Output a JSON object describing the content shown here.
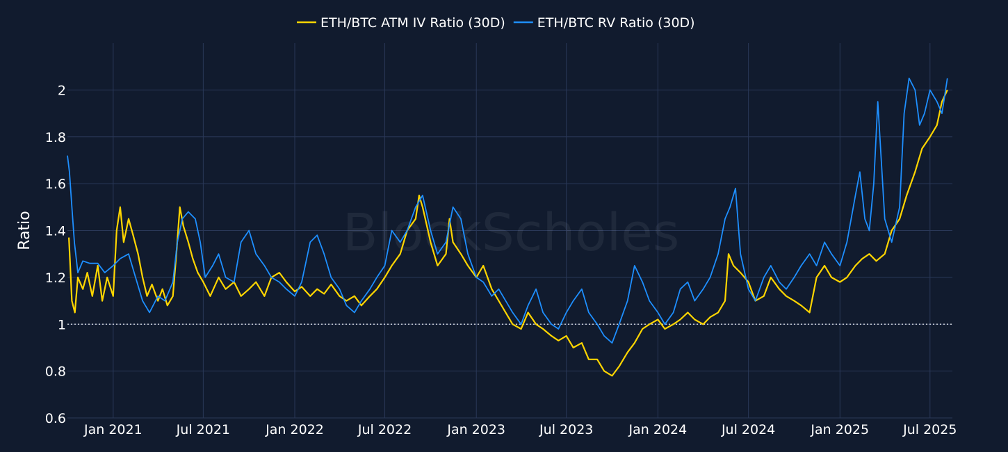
{
  "watermark": "BlockScholes",
  "colors": {
    "background": "#111b2e",
    "grid": "#2a3858",
    "iv": "#ffd500",
    "rv": "#1e8fff",
    "reference": "#c8ccd4"
  },
  "chart_data": {
    "type": "line",
    "xlabel": "",
    "ylabel": "Ratio",
    "ylim": [
      0.6,
      2.2
    ],
    "yticks": [
      0.6,
      0.8,
      1,
      1.2,
      1.4,
      1.6,
      1.8,
      2
    ],
    "ytick_labels": [
      "0.6",
      "0.8",
      "1",
      "1.2",
      "1.4",
      "1.6",
      "1.8",
      "2"
    ],
    "xlim": [
      "2020-10-01",
      "2025-08-15"
    ],
    "xticks": [
      "2021-01-01",
      "2021-07-01",
      "2022-01-01",
      "2022-07-01",
      "2023-01-01",
      "2023-07-01",
      "2024-01-01",
      "2024-07-01",
      "2025-01-01",
      "2025-07-01"
    ],
    "xtick_labels": [
      "Jan 2021",
      "Jul 2021",
      "Jan 2022",
      "Jul 2022",
      "Jan 2023",
      "Jul 2023",
      "Jan 2024",
      "Jul 2024",
      "Jan 2025",
      "Jul 2025"
    ],
    "grid": true,
    "legend_position": "top-center",
    "reference_line": {
      "y": 1,
      "style": "dotted"
    },
    "series": [
      {
        "name": "ETH/BTC ATM IV Ratio (30D)",
        "color": "#ffd500",
        "points": [
          [
            "2020-10-04",
            1.37
          ],
          [
            "2020-10-10",
            1.1
          ],
          [
            "2020-10-16",
            1.05
          ],
          [
            "2020-10-22",
            1.2
          ],
          [
            "2020-11-01",
            1.15
          ],
          [
            "2020-11-10",
            1.22
          ],
          [
            "2020-11-20",
            1.12
          ],
          [
            "2020-12-01",
            1.25
          ],
          [
            "2020-12-10",
            1.1
          ],
          [
            "2020-12-20",
            1.2
          ],
          [
            "2021-01-01",
            1.12
          ],
          [
            "2021-01-08",
            1.4
          ],
          [
            "2021-01-15",
            1.5
          ],
          [
            "2021-01-22",
            1.35
          ],
          [
            "2021-02-01",
            1.45
          ],
          [
            "2021-02-10",
            1.38
          ],
          [
            "2021-02-20",
            1.3
          ],
          [
            "2021-03-01",
            1.2
          ],
          [
            "2021-03-10",
            1.12
          ],
          [
            "2021-03-20",
            1.17
          ],
          [
            "2021-04-01",
            1.1
          ],
          [
            "2021-04-10",
            1.15
          ],
          [
            "2021-04-20",
            1.08
          ],
          [
            "2021-05-01",
            1.12
          ],
          [
            "2021-05-08",
            1.3
          ],
          [
            "2021-05-15",
            1.5
          ],
          [
            "2021-05-22",
            1.42
          ],
          [
            "2021-06-01",
            1.35
          ],
          [
            "2021-06-10",
            1.28
          ],
          [
            "2021-06-20",
            1.22
          ],
          [
            "2021-07-01",
            1.18
          ],
          [
            "2021-07-15",
            1.12
          ],
          [
            "2021-08-01",
            1.2
          ],
          [
            "2021-08-15",
            1.15
          ],
          [
            "2021-09-01",
            1.18
          ],
          [
            "2021-09-15",
            1.12
          ],
          [
            "2021-10-01",
            1.15
          ],
          [
            "2021-10-15",
            1.18
          ],
          [
            "2021-11-01",
            1.12
          ],
          [
            "2021-11-15",
            1.2
          ],
          [
            "2021-12-01",
            1.22
          ],
          [
            "2021-12-15",
            1.18
          ],
          [
            "2022-01-01",
            1.14
          ],
          [
            "2022-01-15",
            1.16
          ],
          [
            "2022-02-01",
            1.12
          ],
          [
            "2022-02-15",
            1.15
          ],
          [
            "2022-03-01",
            1.13
          ],
          [
            "2022-03-15",
            1.17
          ],
          [
            "2022-04-01",
            1.12
          ],
          [
            "2022-04-15",
            1.1
          ],
          [
            "2022-05-01",
            1.12
          ],
          [
            "2022-05-15",
            1.08
          ],
          [
            "2022-06-01",
            1.12
          ],
          [
            "2022-06-15",
            1.15
          ],
          [
            "2022-07-01",
            1.2
          ],
          [
            "2022-07-15",
            1.25
          ],
          [
            "2022-08-01",
            1.3
          ],
          [
            "2022-08-15",
            1.4
          ],
          [
            "2022-09-01",
            1.45
          ],
          [
            "2022-09-08",
            1.55
          ],
          [
            "2022-09-15",
            1.5
          ],
          [
            "2022-10-01",
            1.35
          ],
          [
            "2022-10-15",
            1.25
          ],
          [
            "2022-11-01",
            1.3
          ],
          [
            "2022-11-08",
            1.45
          ],
          [
            "2022-11-15",
            1.35
          ],
          [
            "2022-12-01",
            1.3
          ],
          [
            "2022-12-15",
            1.25
          ],
          [
            "2023-01-01",
            1.2
          ],
          [
            "2023-01-15",
            1.25
          ],
          [
            "2023-02-01",
            1.15
          ],
          [
            "2023-02-15",
            1.1
          ],
          [
            "2023-03-01",
            1.05
          ],
          [
            "2023-03-15",
            1.0
          ],
          [
            "2023-04-01",
            0.98
          ],
          [
            "2023-04-15",
            1.05
          ],
          [
            "2023-05-01",
            1.0
          ],
          [
            "2023-05-15",
            0.98
          ],
          [
            "2023-06-01",
            0.95
          ],
          [
            "2023-06-15",
            0.93
          ],
          [
            "2023-07-01",
            0.95
          ],
          [
            "2023-07-15",
            0.9
          ],
          [
            "2023-08-01",
            0.92
          ],
          [
            "2023-08-15",
            0.85
          ],
          [
            "2023-09-01",
            0.85
          ],
          [
            "2023-09-15",
            0.8
          ],
          [
            "2023-10-01",
            0.78
          ],
          [
            "2023-10-15",
            0.82
          ],
          [
            "2023-11-01",
            0.88
          ],
          [
            "2023-11-15",
            0.92
          ],
          [
            "2023-12-01",
            0.98
          ],
          [
            "2023-12-15",
            1.0
          ],
          [
            "2024-01-01",
            1.02
          ],
          [
            "2024-01-15",
            0.98
          ],
          [
            "2024-02-01",
            1.0
          ],
          [
            "2024-02-15",
            1.02
          ],
          [
            "2024-03-01",
            1.05
          ],
          [
            "2024-03-15",
            1.02
          ],
          [
            "2024-04-01",
            1.0
          ],
          [
            "2024-04-15",
            1.03
          ],
          [
            "2024-05-01",
            1.05
          ],
          [
            "2024-05-15",
            1.1
          ],
          [
            "2024-05-22",
            1.3
          ],
          [
            "2024-06-01",
            1.25
          ],
          [
            "2024-06-15",
            1.22
          ],
          [
            "2024-07-01",
            1.18
          ],
          [
            "2024-07-15",
            1.1
          ],
          [
            "2024-08-01",
            1.12
          ],
          [
            "2024-08-15",
            1.2
          ],
          [
            "2024-09-01",
            1.15
          ],
          [
            "2024-09-15",
            1.12
          ],
          [
            "2024-10-01",
            1.1
          ],
          [
            "2024-10-15",
            1.08
          ],
          [
            "2024-11-01",
            1.05
          ],
          [
            "2024-11-15",
            1.2
          ],
          [
            "2024-12-01",
            1.25
          ],
          [
            "2024-12-15",
            1.2
          ],
          [
            "2025-01-01",
            1.18
          ],
          [
            "2025-01-15",
            1.2
          ],
          [
            "2025-02-01",
            1.25
          ],
          [
            "2025-02-15",
            1.28
          ],
          [
            "2025-03-01",
            1.3
          ],
          [
            "2025-03-15",
            1.27
          ],
          [
            "2025-04-01",
            1.3
          ],
          [
            "2025-04-15",
            1.4
          ],
          [
            "2025-05-01",
            1.45
          ],
          [
            "2025-05-15",
            1.55
          ],
          [
            "2025-06-01",
            1.65
          ],
          [
            "2025-06-15",
            1.75
          ],
          [
            "2025-07-01",
            1.8
          ],
          [
            "2025-07-15",
            1.85
          ],
          [
            "2025-07-25",
            1.95
          ],
          [
            "2025-08-05",
            2.0
          ]
        ]
      },
      {
        "name": "ETH/BTC RV Ratio (30D)",
        "color": "#1e8fff",
        "points": [
          [
            "2020-10-01",
            1.72
          ],
          [
            "2020-10-05",
            1.65
          ],
          [
            "2020-10-10",
            1.5
          ],
          [
            "2020-10-15",
            1.35
          ],
          [
            "2020-10-22",
            1.22
          ],
          [
            "2020-11-01",
            1.27
          ],
          [
            "2020-11-15",
            1.26
          ],
          [
            "2020-12-01",
            1.26
          ],
          [
            "2020-12-15",
            1.22
          ],
          [
            "2021-01-01",
            1.25
          ],
          [
            "2021-01-15",
            1.28
          ],
          [
            "2021-02-01",
            1.3
          ],
          [
            "2021-02-15",
            1.2
          ],
          [
            "2021-03-01",
            1.1
          ],
          [
            "2021-03-15",
            1.05
          ],
          [
            "2021-04-01",
            1.12
          ],
          [
            "2021-04-15",
            1.1
          ],
          [
            "2021-05-01",
            1.18
          ],
          [
            "2021-05-10",
            1.35
          ],
          [
            "2021-05-20",
            1.45
          ],
          [
            "2021-06-01",
            1.48
          ],
          [
            "2021-06-15",
            1.45
          ],
          [
            "2021-06-25",
            1.35
          ],
          [
            "2021-07-05",
            1.2
          ],
          [
            "2021-07-20",
            1.25
          ],
          [
            "2021-08-01",
            1.3
          ],
          [
            "2021-08-15",
            1.2
          ],
          [
            "2021-09-01",
            1.18
          ],
          [
            "2021-09-15",
            1.35
          ],
          [
            "2021-10-01",
            1.4
          ],
          [
            "2021-10-15",
            1.3
          ],
          [
            "2021-11-01",
            1.25
          ],
          [
            "2021-11-15",
            1.2
          ],
          [
            "2021-12-01",
            1.18
          ],
          [
            "2021-12-15",
            1.15
          ],
          [
            "2022-01-01",
            1.12
          ],
          [
            "2022-01-15",
            1.18
          ],
          [
            "2022-02-01",
            1.35
          ],
          [
            "2022-02-15",
            1.38
          ],
          [
            "2022-03-01",
            1.3
          ],
          [
            "2022-03-15",
            1.2
          ],
          [
            "2022-04-01",
            1.15
          ],
          [
            "2022-04-15",
            1.08
          ],
          [
            "2022-05-01",
            1.05
          ],
          [
            "2022-05-15",
            1.1
          ],
          [
            "2022-06-01",
            1.15
          ],
          [
            "2022-06-15",
            1.2
          ],
          [
            "2022-07-01",
            1.25
          ],
          [
            "2022-07-15",
            1.4
          ],
          [
            "2022-08-01",
            1.35
          ],
          [
            "2022-08-15",
            1.4
          ],
          [
            "2022-09-01",
            1.5
          ],
          [
            "2022-09-15",
            1.55
          ],
          [
            "2022-10-01",
            1.4
          ],
          [
            "2022-10-15",
            1.3
          ],
          [
            "2022-11-01",
            1.35
          ],
          [
            "2022-11-15",
            1.5
          ],
          [
            "2022-12-01",
            1.45
          ],
          [
            "2022-12-15",
            1.3
          ],
          [
            "2023-01-01",
            1.2
          ],
          [
            "2023-01-15",
            1.18
          ],
          [
            "2023-02-01",
            1.12
          ],
          [
            "2023-02-15",
            1.15
          ],
          [
            "2023-03-01",
            1.1
          ],
          [
            "2023-03-15",
            1.05
          ],
          [
            "2023-04-01",
            1.0
          ],
          [
            "2023-04-15",
            1.08
          ],
          [
            "2023-05-01",
            1.15
          ],
          [
            "2023-05-15",
            1.05
          ],
          [
            "2023-06-01",
            1.0
          ],
          [
            "2023-06-15",
            0.98
          ],
          [
            "2023-07-01",
            1.05
          ],
          [
            "2023-07-15",
            1.1
          ],
          [
            "2023-08-01",
            1.15
          ],
          [
            "2023-08-15",
            1.05
          ],
          [
            "2023-09-01",
            1.0
          ],
          [
            "2023-09-15",
            0.95
          ],
          [
            "2023-10-01",
            0.92
          ],
          [
            "2023-10-15",
            1.0
          ],
          [
            "2023-11-01",
            1.1
          ],
          [
            "2023-11-15",
            1.25
          ],
          [
            "2023-12-01",
            1.18
          ],
          [
            "2023-12-15",
            1.1
          ],
          [
            "2024-01-01",
            1.05
          ],
          [
            "2024-01-15",
            1.0
          ],
          [
            "2024-02-01",
            1.05
          ],
          [
            "2024-02-15",
            1.15
          ],
          [
            "2024-03-01",
            1.18
          ],
          [
            "2024-03-15",
            1.1
          ],
          [
            "2024-04-01",
            1.15
          ],
          [
            "2024-04-15",
            1.2
          ],
          [
            "2024-05-01",
            1.3
          ],
          [
            "2024-05-15",
            1.45
          ],
          [
            "2024-05-25",
            1.5
          ],
          [
            "2024-06-05",
            1.58
          ],
          [
            "2024-06-15",
            1.3
          ],
          [
            "2024-07-01",
            1.15
          ],
          [
            "2024-07-15",
            1.1
          ],
          [
            "2024-08-01",
            1.2
          ],
          [
            "2024-08-15",
            1.25
          ],
          [
            "2024-09-01",
            1.18
          ],
          [
            "2024-09-15",
            1.15
          ],
          [
            "2024-10-01",
            1.2
          ],
          [
            "2024-10-15",
            1.25
          ],
          [
            "2024-11-01",
            1.3
          ],
          [
            "2024-11-15",
            1.25
          ],
          [
            "2024-12-01",
            1.35
          ],
          [
            "2024-12-15",
            1.3
          ],
          [
            "2025-01-01",
            1.25
          ],
          [
            "2025-01-15",
            1.35
          ],
          [
            "2025-02-01",
            1.55
          ],
          [
            "2025-02-10",
            1.65
          ],
          [
            "2025-02-20",
            1.45
          ],
          [
            "2025-03-01",
            1.4
          ],
          [
            "2025-03-10",
            1.6
          ],
          [
            "2025-03-18",
            1.95
          ],
          [
            "2025-03-25",
            1.7
          ],
          [
            "2025-04-01",
            1.45
          ],
          [
            "2025-04-15",
            1.35
          ],
          [
            "2025-05-01",
            1.5
          ],
          [
            "2025-05-10",
            1.9
          ],
          [
            "2025-05-20",
            2.05
          ],
          [
            "2025-06-01",
            2.0
          ],
          [
            "2025-06-10",
            1.85
          ],
          [
            "2025-06-20",
            1.9
          ],
          [
            "2025-07-01",
            2.0
          ],
          [
            "2025-07-15",
            1.95
          ],
          [
            "2025-07-25",
            1.9
          ],
          [
            "2025-08-05",
            2.05
          ]
        ]
      }
    ]
  }
}
